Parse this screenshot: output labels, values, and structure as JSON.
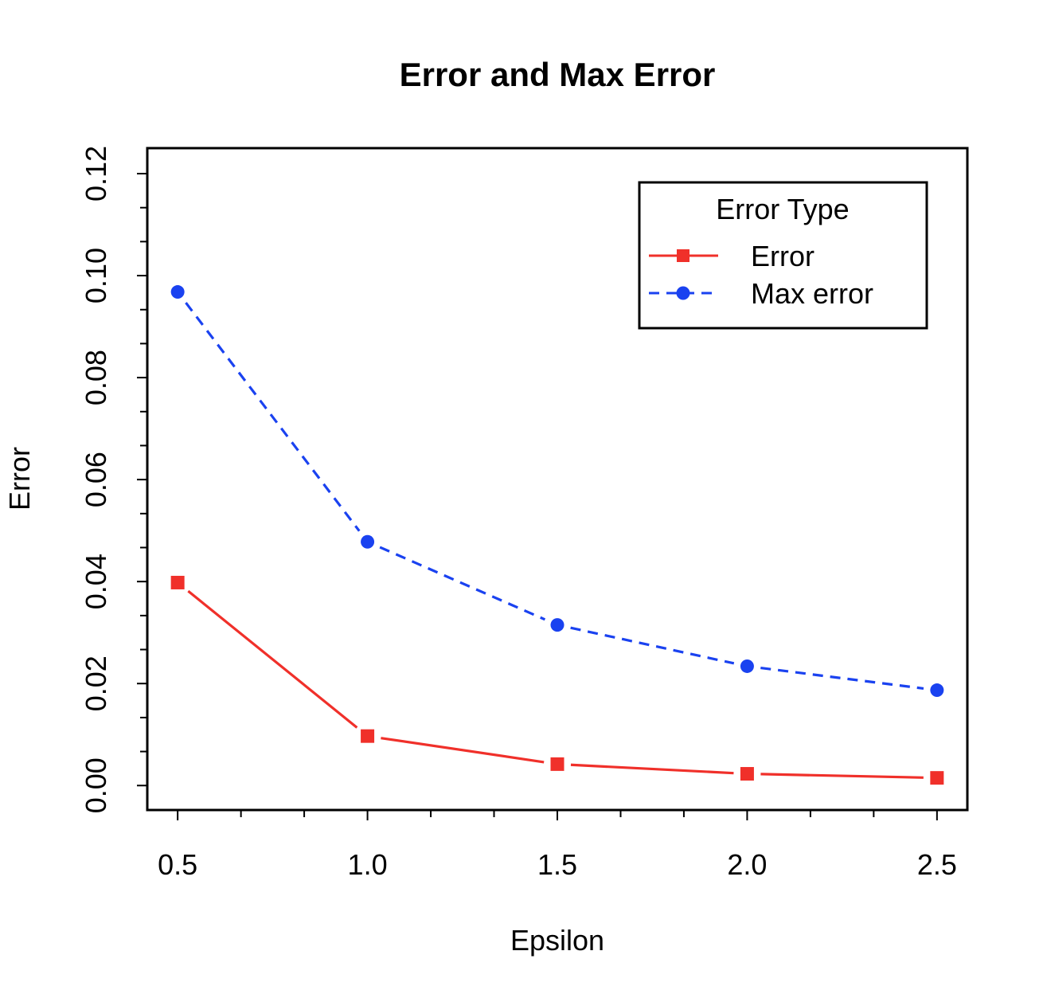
{
  "chart_data": {
    "type": "line",
    "title": "Error and Max Error",
    "xlabel": "Epsilon",
    "ylabel": "Error",
    "x": [
      0.5,
      1.0,
      1.5,
      2.0,
      2.5
    ],
    "xlim": [
      0.42,
      2.58
    ],
    "ylim": [
      -0.0048,
      0.125
    ],
    "x_ticks": [
      0.5,
      1.0,
      1.5,
      2.0,
      2.5
    ],
    "x_tick_labels": [
      "0.5",
      "1.0",
      "1.5",
      "2.0",
      "2.5"
    ],
    "x_minor_ticks": [
      0.6667,
      0.8333,
      1.1667,
      1.3333,
      1.6667,
      1.8333,
      2.1667,
      2.3333
    ],
    "y_ticks": [
      0.0,
      0.02,
      0.04,
      0.06,
      0.08,
      0.1,
      0.12
    ],
    "y_tick_labels": [
      "0.00",
      "0.02",
      "0.04",
      "0.06",
      "0.08",
      "0.10",
      "0.12"
    ],
    "y_minor_ticks": [
      0.00667,
      0.01333,
      0.02667,
      0.03333,
      0.04667,
      0.05333,
      0.06667,
      0.07333,
      0.08667,
      0.09333,
      0.10667,
      0.11333
    ],
    "grid": false,
    "legend": {
      "title": "Error Type",
      "position": "top-right"
    },
    "series": [
      {
        "name": "Error",
        "values": [
          0.0398,
          0.0097,
          0.0042,
          0.0023,
          0.0015
        ],
        "color": "#f0302a",
        "line_style": "solid",
        "marker": "square"
      },
      {
        "name": "Max error",
        "values": [
          0.0968,
          0.0478,
          0.0315,
          0.0234,
          0.0187
        ],
        "color": "#1a42f0",
        "line_style": "dashed",
        "marker": "circle"
      }
    ]
  }
}
